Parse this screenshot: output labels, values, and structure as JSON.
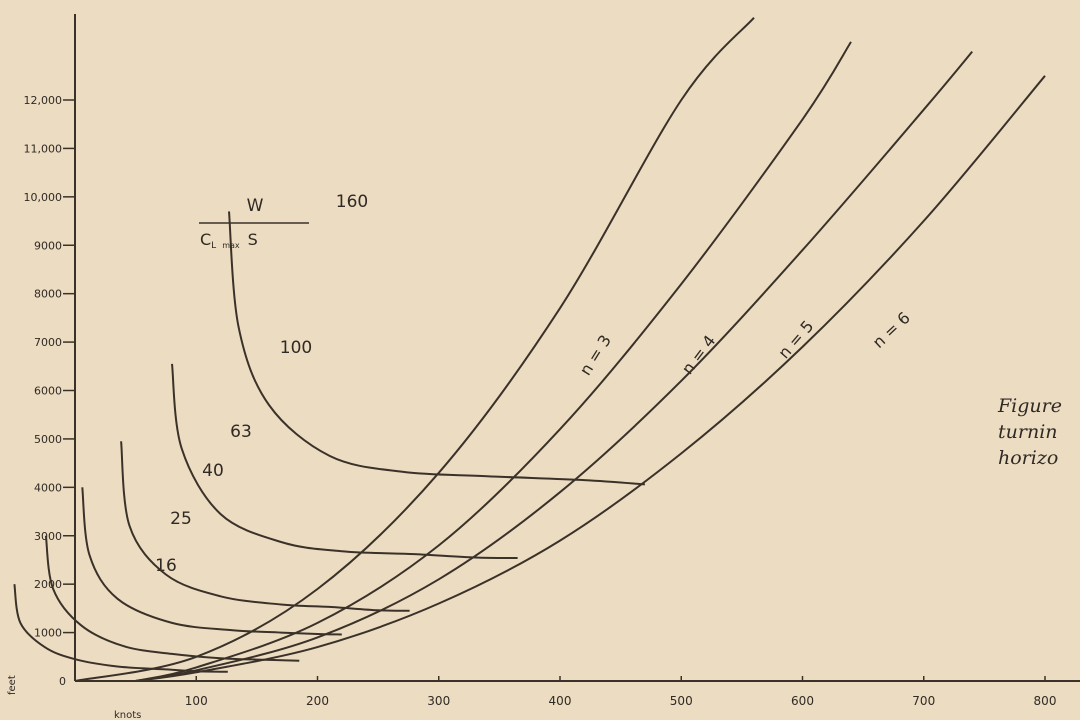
{
  "chart_data": {
    "type": "line",
    "x_unit": "knots",
    "y_unit": "feet",
    "xlim": [
      0,
      800
    ],
    "ylim": [
      0,
      12000
    ],
    "x_ticks": [
      "100",
      "200",
      "300",
      "400",
      "500",
      "600",
      "700",
      "800"
    ],
    "y_ticks": [
      "0",
      "1000",
      "2000",
      "3000",
      "4000",
      "5000",
      "6000",
      "7000",
      "8000",
      "9000",
      "10,000",
      "11,000",
      "12,000"
    ],
    "formula": {
      "numerator": "W",
      "denominator_prefix": "C",
      "denominator_sub1": "L",
      "denominator_sub2": "max",
      "denominator_suffix": "S"
    },
    "load_factor_series": [
      {
        "name": "n = 3",
        "points": [
          [
            0,
            0
          ],
          [
            100,
            500
          ],
          [
            200,
            1900
          ],
          [
            300,
            4300
          ],
          [
            400,
            7700
          ],
          [
            500,
            12000
          ],
          [
            560,
            13700
          ]
        ]
      },
      {
        "name": "n = 4",
        "points": [
          [
            50,
            0
          ],
          [
            100,
            280
          ],
          [
            200,
            1200
          ],
          [
            300,
            2800
          ],
          [
            400,
            5200
          ],
          [
            500,
            8200
          ],
          [
            600,
            11600
          ],
          [
            640,
            13200
          ]
        ]
      },
      {
        "name": "n = 5",
        "points": [
          [
            50,
            0
          ],
          [
            100,
            220
          ],
          [
            200,
            900
          ],
          [
            300,
            2100
          ],
          [
            400,
            3900
          ],
          [
            500,
            6200
          ],
          [
            600,
            8900
          ],
          [
            700,
            11800
          ],
          [
            740,
            13000
          ]
        ]
      },
      {
        "name": "n = 6",
        "points": [
          [
            50,
            0
          ],
          [
            100,
            180
          ],
          [
            200,
            700
          ],
          [
            300,
            1600
          ],
          [
            400,
            2900
          ],
          [
            500,
            4700
          ],
          [
            600,
            6900
          ],
          [
            700,
            9500
          ],
          [
            800,
            12500
          ]
        ]
      }
    ],
    "wing_loading_series": [
      {
        "name": "16",
        "points": [
          [
            -50,
            2000
          ],
          [
            -45,
            1200
          ],
          [
            -25,
            700
          ],
          [
            0,
            450
          ],
          [
            35,
            300
          ],
          [
            75,
            240
          ],
          [
            100,
            200
          ],
          [
            126,
            190
          ]
        ]
      },
      {
        "name": "25",
        "points": [
          [
            -24,
            3000
          ],
          [
            -18,
            1900
          ],
          [
            5,
            1150
          ],
          [
            40,
            720
          ],
          [
            80,
            560
          ],
          [
            120,
            470
          ],
          [
            155,
            440
          ],
          [
            185,
            420
          ]
        ]
      },
      {
        "name": "40",
        "points": [
          [
            6,
            4000
          ],
          [
            12,
            2600
          ],
          [
            35,
            1700
          ],
          [
            80,
            1200
          ],
          [
            130,
            1050
          ],
          [
            170,
            1000
          ],
          [
            200,
            970
          ],
          [
            220,
            960
          ]
        ]
      },
      {
        "name": "63",
        "points": [
          [
            38,
            4950
          ],
          [
            45,
            3200
          ],
          [
            75,
            2200
          ],
          [
            120,
            1750
          ],
          [
            170,
            1580
          ],
          [
            210,
            1530
          ],
          [
            250,
            1460
          ],
          [
            276,
            1450
          ]
        ]
      },
      {
        "name": "100",
        "points": [
          [
            80,
            6550
          ],
          [
            88,
            4800
          ],
          [
            120,
            3450
          ],
          [
            170,
            2870
          ],
          [
            220,
            2680
          ],
          [
            280,
            2620
          ],
          [
            330,
            2550
          ],
          [
            365,
            2540
          ]
        ]
      },
      {
        "name": "160",
        "points": [
          [
            127,
            9700
          ],
          [
            135,
            7300
          ],
          [
            160,
            5700
          ],
          [
            210,
            4650
          ],
          [
            270,
            4320
          ],
          [
            340,
            4230
          ],
          [
            420,
            4150
          ],
          [
            470,
            4060
          ]
        ]
      }
    ],
    "wing_loading_labels": [
      "160",
      "100",
      "63",
      "40",
      "25",
      "16"
    ]
  },
  "caption": {
    "line1": "Figure",
    "line2": "turnin",
    "line3": "horizo"
  }
}
